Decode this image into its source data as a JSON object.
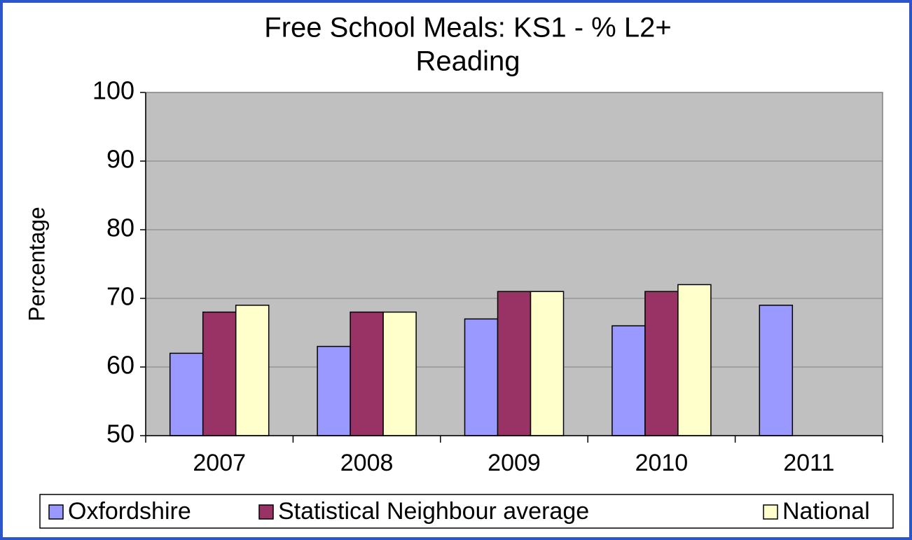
{
  "chart_data": {
    "type": "bar",
    "title": [
      "Free School Meals: KS1 - % L2+",
      "Reading"
    ],
    "y_label": "Percentage",
    "categories": [
      "2007",
      "2008",
      "2009",
      "2010",
      "2011"
    ],
    "series": [
      {
        "name": "Oxfordshire",
        "color": "#9999ff",
        "values": [
          62,
          63,
          67,
          66,
          69
        ]
      },
      {
        "name": "Statistical Neighbour average",
        "color": "#993366",
        "values": [
          68,
          68,
          71,
          71,
          null
        ]
      },
      {
        "name": "National",
        "color": "#ffffcc",
        "values": [
          69,
          68,
          71,
          72,
          null
        ]
      }
    ],
    "ylim": [
      50,
      100
    ],
    "yticks": [
      50,
      60,
      70,
      80,
      90,
      100
    ],
    "grid": true,
    "legend": "bottom"
  }
}
